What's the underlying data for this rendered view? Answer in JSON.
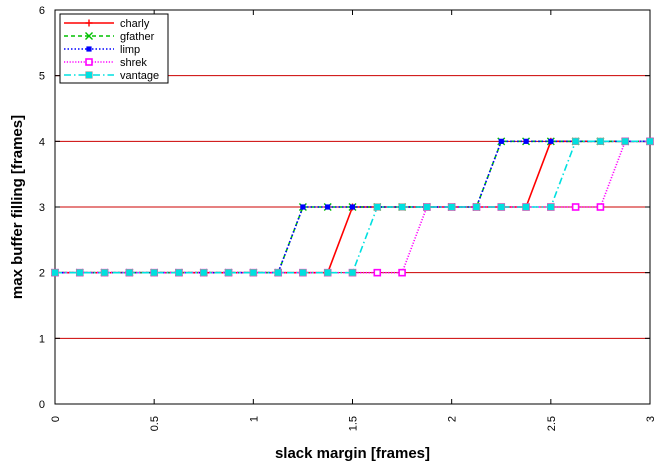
{
  "chart_data": {
    "type": "line",
    "xlabel": "slack margin [frames]",
    "ylabel": "max buffer filling [frames]",
    "xlim": [
      0,
      3
    ],
    "ylim": [
      0,
      6
    ],
    "x_ticks": [
      "0",
      "0.5",
      "1",
      "1.5",
      "2",
      "2.5",
      "3"
    ],
    "y_ticks": [
      "0",
      "1",
      "2",
      "3",
      "4",
      "5",
      "6"
    ],
    "grid": "horizontal",
    "legend_position": "top-left",
    "x": [
      0,
      0.125,
      0.25,
      0.375,
      0.5,
      0.625,
      0.75,
      0.875,
      1.0,
      1.125,
      1.25,
      1.375,
      1.5,
      1.625,
      1.75,
      1.875,
      2.0,
      2.125,
      2.25,
      2.375,
      2.5,
      2.625,
      2.75,
      2.875,
      3.0
    ],
    "series": [
      {
        "name": "charly",
        "color": "#ff0000",
        "dash": "",
        "marker": "plus",
        "values": [
          2,
          2,
          2,
          2,
          2,
          2,
          2,
          2,
          2,
          2,
          2,
          2,
          3,
          3,
          3,
          3,
          3,
          3,
          3,
          3,
          4,
          4,
          4,
          4,
          4
        ]
      },
      {
        "name": "gfather",
        "color": "#00c000",
        "dash": "4,3",
        "marker": "cross",
        "values": [
          2,
          2,
          2,
          2,
          2,
          2,
          2,
          2,
          2,
          2,
          3,
          3,
          3,
          3,
          3,
          3,
          3,
          3,
          4,
          4,
          4,
          4,
          4,
          4,
          4
        ]
      },
      {
        "name": "limp",
        "color": "#0000ff",
        "dash": "1.5,2",
        "marker": "square",
        "values": [
          2,
          2,
          2,
          2,
          2,
          2,
          2,
          2,
          2,
          2,
          3,
          3,
          3,
          3,
          3,
          3,
          3,
          3,
          4,
          4,
          4,
          4,
          4,
          4,
          4
        ]
      },
      {
        "name": "shrek",
        "color": "#ff00ff",
        "dash": "1.2,1.6",
        "marker": "square-open",
        "values": [
          2,
          2,
          2,
          2,
          2,
          2,
          2,
          2,
          2,
          2,
          2,
          2,
          2,
          2,
          2,
          3,
          3,
          3,
          3,
          3,
          3,
          3,
          3,
          4,
          4
        ]
      },
      {
        "name": "vantage",
        "color": "#00e0e0",
        "dash": "7,3,1.5,3",
        "marker": "square-filled",
        "values": [
          2,
          2,
          2,
          2,
          2,
          2,
          2,
          2,
          2,
          2,
          2,
          2,
          2,
          3,
          3,
          3,
          3,
          3,
          3,
          3,
          3,
          4,
          4,
          4,
          4
        ]
      }
    ]
  }
}
